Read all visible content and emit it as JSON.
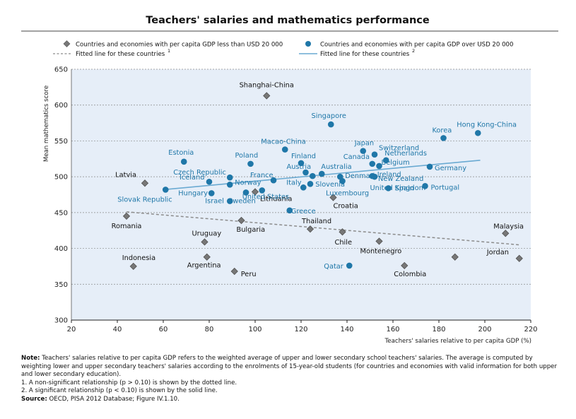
{
  "chart_data": {
    "type": "scatter",
    "title": "Teachers' salaries and mathematics performance",
    "xlabel": "Teachers' salaries relative to per capita GDP (%)",
    "ylabel": "Mean mathematics score",
    "xlim": [
      20,
      220
    ],
    "ylim": [
      300,
      650
    ],
    "x_ticks": [
      20,
      40,
      60,
      80,
      100,
      120,
      140,
      160,
      180,
      200,
      220
    ],
    "y_ticks": [
      300,
      350,
      400,
      450,
      500,
      550,
      600,
      650
    ],
    "grid": "horizontal dashed",
    "legend_position": "top",
    "colors": {
      "low": "#777777",
      "high": "#1f77a8",
      "line_high": "#6aaad2",
      "line_low": "#8c8c8c",
      "plot_bg": "#e6eef8"
    },
    "series": [
      {
        "name": "Countries and economies with per capita GDP less than USD 20 000",
        "marker": "diamond",
        "points": [
          {
            "label": "Shanghai-China",
            "x": 105,
            "y": 613
          },
          {
            "label": "Latvia",
            "x": 52,
            "y": 491
          },
          {
            "label": "Romania",
            "x": 44,
            "y": 445
          },
          {
            "label": "Lithuania",
            "x": 100,
            "y": 479
          },
          {
            "label": "Croatia",
            "x": 134,
            "y": 471
          },
          {
            "label": "Bulgaria",
            "x": 94,
            "y": 439
          },
          {
            "label": "Thailand",
            "x": 124,
            "y": 427
          },
          {
            "label": "Uruguay",
            "x": 78,
            "y": 409
          },
          {
            "label": "Chile",
            "x": 138,
            "y": 423
          },
          {
            "label": "Montenegro",
            "x": 154,
            "y": 410
          },
          {
            "label": "Malaysia",
            "x": 209,
            "y": 421
          },
          {
            "label": "Indonesia",
            "x": 47,
            "y": 375
          },
          {
            "label": "Argentina",
            "x": 79,
            "y": 388
          },
          {
            "label": "Peru",
            "x": 91,
            "y": 368
          },
          {
            "label": "Colombia",
            "x": 165,
            "y": 376
          },
          {
            "label": "Jordan",
            "x": 215,
            "y": 386
          },
          {
            "label": "",
            "x": 187,
            "y": 388
          }
        ]
      },
      {
        "name": "Countries and economies with per capita GDP over USD 20 000",
        "marker": "circle",
        "points": [
          {
            "label": "Singapore",
            "x": 133,
            "y": 573
          },
          {
            "label": "Hong Kong-China",
            "x": 197,
            "y": 561
          },
          {
            "label": "Korea",
            "x": 182,
            "y": 554
          },
          {
            "label": "Macao-China",
            "x": 113,
            "y": 538
          },
          {
            "label": "Japan",
            "x": 147,
            "y": 536
          },
          {
            "label": "Estonia",
            "x": 69,
            "y": 521
          },
          {
            "label": "Poland",
            "x": 98,
            "y": 518
          },
          {
            "label": "Finland",
            "x": 120,
            "y": 519
          },
          {
            "label": "Canada",
            "x": 151,
            "y": 518
          },
          {
            "label": "Netherlands",
            "x": 157,
            "y": 523
          },
          {
            "label": "Belgium",
            "x": 154,
            "y": 515
          },
          {
            "label": "Germany",
            "x": 176,
            "y": 514
          },
          {
            "label": "Austria",
            "x": 122,
            "y": 506
          },
          {
            "label": "Australia",
            "x": 129,
            "y": 504
          },
          {
            "label": "Denmark",
            "x": 137,
            "y": 500
          },
          {
            "label": "Ireland",
            "x": 151,
            "y": 501
          },
          {
            "label": "Switzerland",
            "x": 152,
            "y": 531
          },
          {
            "label": "Czech Republic",
            "x": 89,
            "y": 499
          },
          {
            "label": "France",
            "x": 108,
            "y": 495
          },
          {
            "label": "New Zealand",
            "x": 152,
            "y": 500
          },
          {
            "label": "Iceland",
            "x": 80,
            "y": 493
          },
          {
            "label": "Norway",
            "x": 89,
            "y": 489
          },
          {
            "label": "Slovenia",
            "x": 125,
            "y": 501
          },
          {
            "label": "Italy",
            "x": 121,
            "y": 485
          },
          {
            "label": "Spain",
            "x": 158,
            "y": 484
          },
          {
            "label": "Portugal",
            "x": 174,
            "y": 487
          },
          {
            "label": "United Kingdom",
            "x": 138,
            "y": 494
          },
          {
            "label": "Luxembourg",
            "x": 124,
            "y": 490
          },
          {
            "label": "Slovak Republic",
            "x": 61,
            "y": 482
          },
          {
            "label": "Hungary",
            "x": 81,
            "y": 477
          },
          {
            "label": "United States",
            "x": 103,
            "y": 481
          },
          {
            "label": "Israel",
            "x": 89,
            "y": 466
          },
          {
            "label": "Sweden",
            "x": 96,
            "y": 478
          },
          {
            "label": "Greece",
            "x": 115,
            "y": 453
          },
          {
            "label": "Qatar",
            "x": 141,
            "y": 376
          }
        ]
      }
    ],
    "fitted_lines": [
      {
        "name": "Fitted line for these countries",
        "note": "1",
        "style": "dashed",
        "x": [
          44,
          215
        ],
        "y": [
          451,
          405
        ]
      },
      {
        "name": "Fitted line for these countries",
        "note": "2",
        "style": "solid",
        "x": [
          60,
          198
        ],
        "y": [
          482,
          523
        ]
      }
    ]
  },
  "notes": {
    "note_label": "Note:",
    "note_text": "Teachers' salaries relative to per capita GDP refers to the weighted average of upper and lower secondary school teachers' salaries. The average is computed by weighting lower and upper secondary teachers' salaries according to the enrolments of 15-year-old students (for countries and economies with valid information for both upper and lower secondary education).",
    "footnote_1": "1. A non-significant relationship (p > 0.10) is shown by the dotted line.",
    "footnote_2": "2. A significant relationship (p < 0.10) is shown by the solid line.",
    "source_label": "Source:",
    "source_text": "OECD, PISA 2012 Database; Figure IV.1.10."
  }
}
